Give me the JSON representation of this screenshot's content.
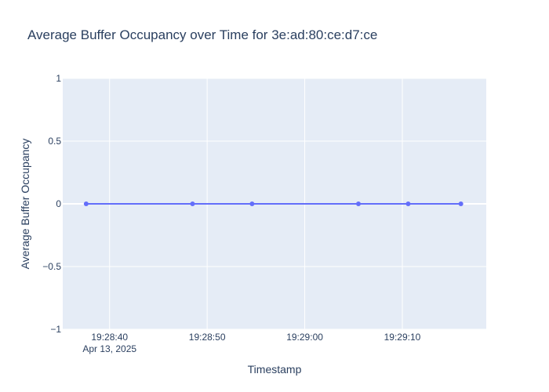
{
  "chart_data": {
    "type": "line",
    "title": "Average Buffer Occupancy over Time for 3e:ad:80:ce:d7:ce",
    "xlabel": "Timestamp",
    "ylabel": "Average Buffer Occupancy",
    "x": [
      "2025-04-13 19:28:37.6",
      "2025-04-13 19:28:48.5",
      "2025-04-13 19:28:54.6",
      "2025-04-13 19:29:05.5",
      "2025-04-13 19:29:10.6",
      "2025-04-13 19:29:16.0"
    ],
    "series": [
      {
        "values": [
          0,
          0,
          0,
          0,
          0,
          0
        ]
      }
    ],
    "ylim": [
      -1,
      1
    ],
    "y_ticks": [
      1,
      0.5,
      0,
      -0.5,
      -1
    ],
    "y_tick_labels": [
      "1",
      "0.5",
      "0",
      "−0.5",
      "−1"
    ],
    "x_ticks": [
      "2025-04-13 19:28:40",
      "2025-04-13 19:28:50",
      "2025-04-13 19:29:00",
      "2025-04-13 19:29:10"
    ],
    "x_tick_labels": [
      "19:28:40",
      "19:28:50",
      "19:29:00",
      "19:29:10"
    ],
    "x_date_label": "Apr 13, 2025",
    "xlim": [
      "2025-04-13 19:28:35.2",
      "2025-04-13 19:29:18.6"
    ],
    "grid": true,
    "legend": false,
    "colors": {
      "line": "#636efa",
      "plot_bg": "#e5ecf6",
      "grid": "#ffffff",
      "text": "#2a3f5f"
    }
  }
}
